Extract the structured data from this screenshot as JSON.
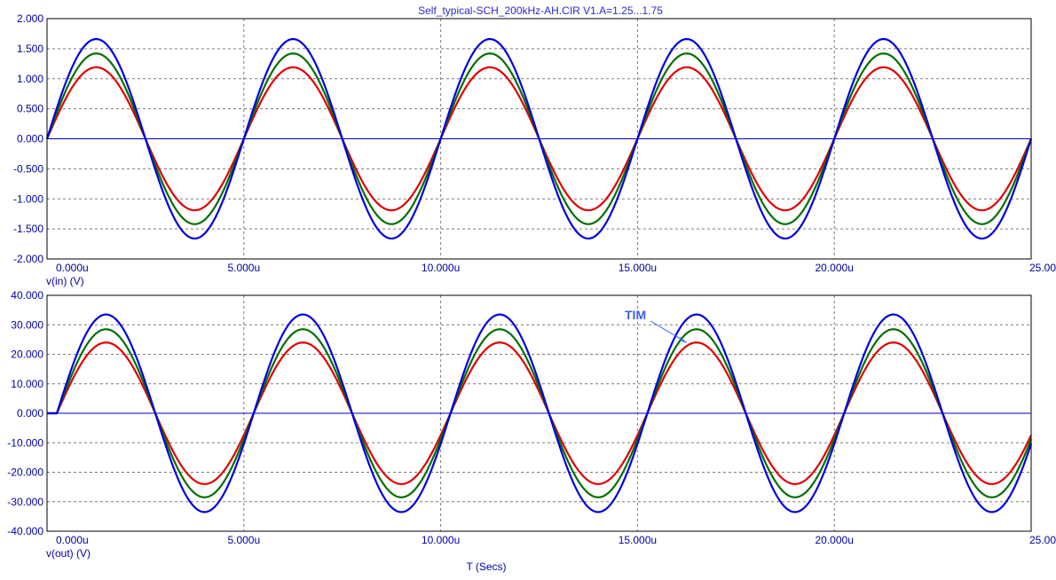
{
  "title": "Self_typical-SCH_200kHz-AH.CIR V1.A=1.25...1.75",
  "x_axis_label": "T (Secs)",
  "colors": {
    "text": "#0000a0",
    "frame": "#000000",
    "grid": "#7a7a7a",
    "zero_line": "#0000c0",
    "red": "#e00000",
    "green": "#007000",
    "blue": "#0000e0",
    "annotation": "#3a5ef0"
  },
  "chart_data": [
    {
      "type": "line",
      "ylabel": "v(in) (V)",
      "xlim": [
        0,
        25
      ],
      "ylim": [
        -2,
        2
      ],
      "x_unit_suffix": "u",
      "x_ticks": [
        "0.000u",
        "5.000u",
        "10.000u",
        "15.000u",
        "20.000u",
        "25.000u"
      ],
      "y_ticks": [
        "2.000",
        "1.500",
        "1.000",
        "0.500",
        "0.000",
        "-0.500",
        "-1.000",
        "-1.500",
        "-2.000"
      ],
      "grid": true,
      "signal": {
        "frequency_khz": 200,
        "phase_shift_us": 0
      },
      "series": [
        {
          "color": "red",
          "amplitude": 1.19
        },
        {
          "color": "green",
          "amplitude": 1.42
        },
        {
          "color": "blue",
          "amplitude": 1.66
        }
      ]
    },
    {
      "type": "line",
      "ylabel": "v(out) (V)",
      "xlim": [
        0,
        25
      ],
      "ylim": [
        -40,
        40
      ],
      "x_unit_suffix": "u",
      "x_ticks": [
        "0.000u",
        "5.000u",
        "10.000u",
        "15.000u",
        "20.000u",
        "25.000u"
      ],
      "y_ticks": [
        "40.000",
        "30.000",
        "20.000",
        "10.000",
        "0.000",
        "-10.000",
        "-20.000",
        "-30.000",
        "-40.000"
      ],
      "grid": true,
      "signal": {
        "frequency_khz": 200,
        "phase_shift_us": 0.25
      },
      "series": [
        {
          "color": "red",
          "amplitude": 24
        },
        {
          "color": "green",
          "amplitude": 28.5
        },
        {
          "color": "blue",
          "amplitude": 33.5
        }
      ],
      "annotation": {
        "text": "TIM",
        "x": 16.25,
        "y": 24
      }
    }
  ]
}
